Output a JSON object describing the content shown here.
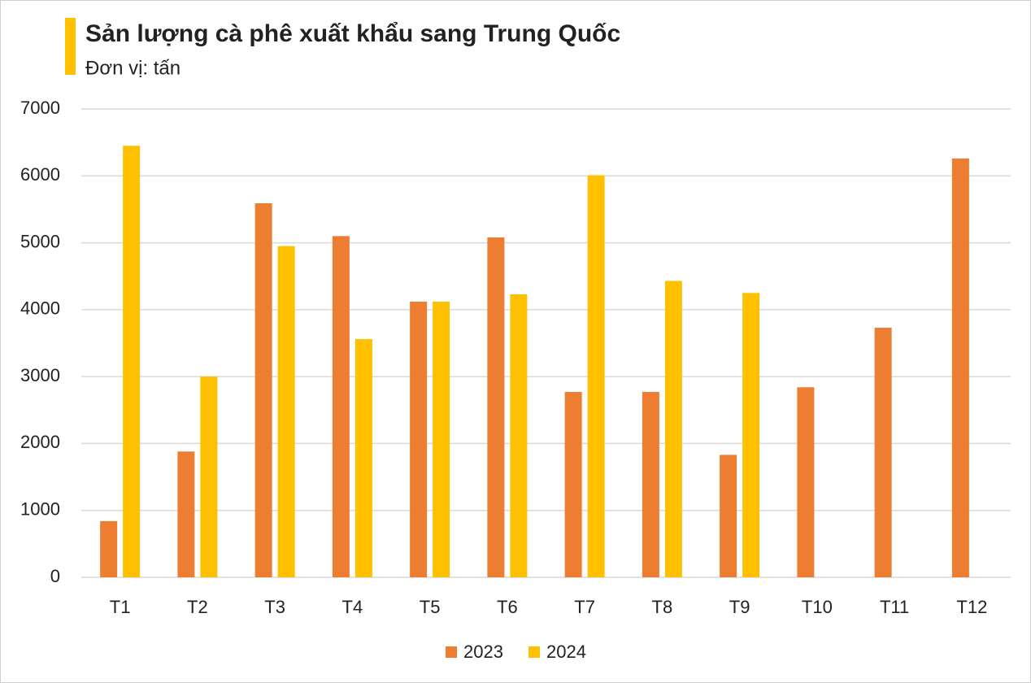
{
  "chart_data": {
    "type": "bar",
    "title": "Sản lượng cà phê xuất khẩu sang Trung Quốc",
    "subtitle": "Đơn vị: tấn",
    "categories": [
      "T1",
      "T2",
      "T3",
      "T4",
      "T5",
      "T6",
      "T7",
      "T8",
      "T9",
      "T10",
      "T11",
      "T12"
    ],
    "series": [
      {
        "name": "2023",
        "color": "#ed7d31",
        "values": [
          840,
          1880,
          5590,
          5100,
          4120,
          5080,
          2770,
          2770,
          1830,
          2840,
          3730,
          6260
        ]
      },
      {
        "name": "2024",
        "color": "#ffc000",
        "values": [
          6450,
          3000,
          4950,
          3560,
          4120,
          4230,
          6010,
          4430,
          4250,
          null,
          null,
          null
        ]
      }
    ],
    "ylim": [
      0,
      7000
    ],
    "yticks": [
      0,
      1000,
      2000,
      3000,
      4000,
      5000,
      6000,
      7000
    ],
    "grid": true,
    "legend": "bottom"
  }
}
